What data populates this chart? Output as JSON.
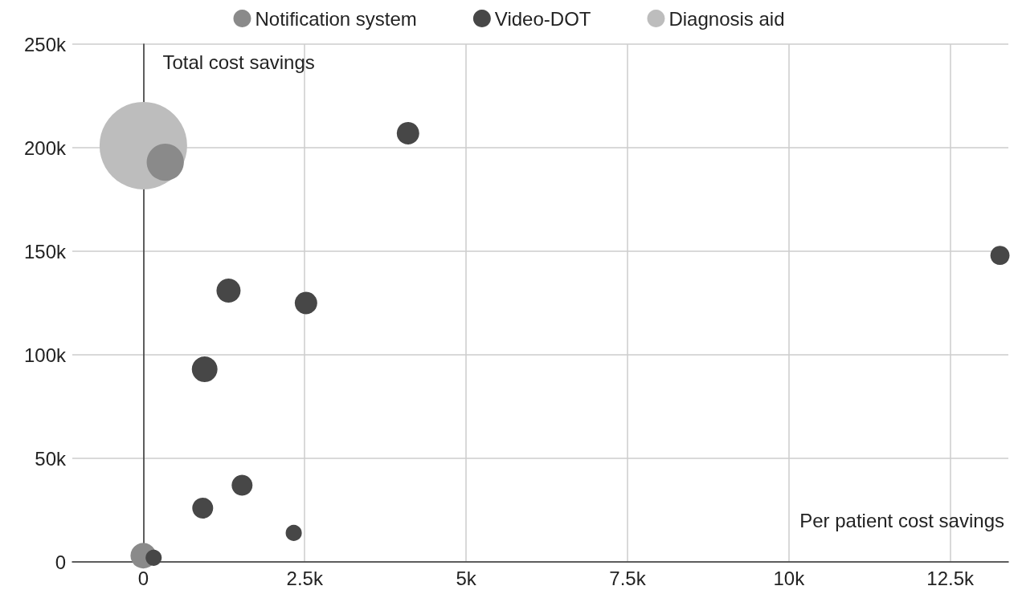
{
  "chart_data": {
    "type": "bubble",
    "xlabel": "Per patient cost savings",
    "ylabel": "Total cost savings",
    "xlim": [
      -1100,
      13400
    ],
    "xticks": [
      0,
      {
        "value": 2500,
        "label": "2.5k"
      },
      {
        "value": 5000,
        "label": "5k"
      },
      {
        "value": 7500,
        "label": "7.5k"
      },
      {
        "value": 10000,
        "label": "10k"
      },
      {
        "value": 12500,
        "label": "12.5k"
      }
    ],
    "ylim": [
      0,
      250000
    ],
    "yticks": [
      0,
      {
        "value": 50000,
        "label": "50k"
      },
      {
        "value": 100000,
        "label": "100k"
      },
      {
        "value": 150000,
        "label": "150k"
      },
      {
        "value": 200000,
        "label": "200k"
      },
      {
        "value": 250000,
        "label": "250k"
      }
    ],
    "grid": true,
    "legend": "top",
    "marker": "circle",
    "series": [
      {
        "name": "Notification system",
        "color": "#8a8a8a",
        "x": [
          340,
          0
        ],
        "values": [
          193000,
          3000
        ],
        "sizes": [
          0.18,
          0.086
        ]
      },
      {
        "name": "Video-DOT",
        "color": "#474747",
        "x": [
          4100,
          13270,
          1320,
          2520,
          950,
          1530,
          920,
          2330,
          160
        ],
        "values": [
          207000,
          148000,
          131000,
          125000,
          93000,
          37000,
          26000,
          14000,
          2000
        ],
        "sizes": [
          0.066,
          0.048,
          0.076,
          0.066,
          0.086,
          0.057,
          0.057,
          0.034,
          0.034
        ]
      },
      {
        "name": "Diagnosis aid",
        "color": "#bdbdbd",
        "x": [
          0
        ],
        "values": [
          201000
        ],
        "sizes": [
          1
        ]
      }
    ]
  }
}
